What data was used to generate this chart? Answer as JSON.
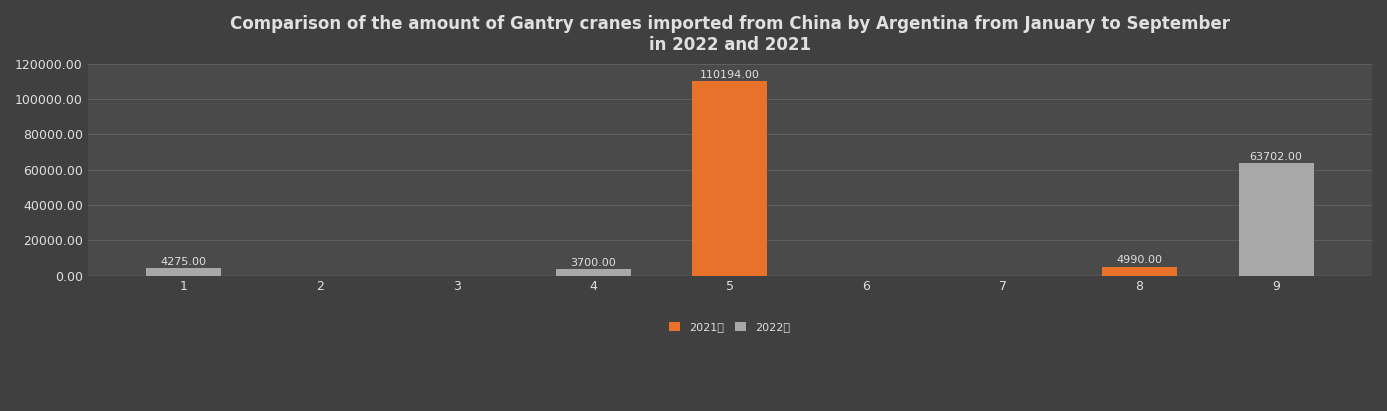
{
  "title": "Comparison of the amount of Gantry cranes imported from China by Argentina from January to September\nin 2022 and 2021",
  "categories": [
    1,
    2,
    3,
    4,
    5,
    6,
    7,
    8,
    9
  ],
  "series_2021": [
    0,
    0,
    0,
    0,
    110194.0,
    0,
    0,
    4990.0,
    0
  ],
  "series_2022": [
    4275.0,
    0,
    0,
    3700.0,
    0,
    0,
    0,
    0,
    63702.0
  ],
  "color_2021": "#E8722A",
  "color_2022": "#A8A8A8",
  "background_color": "#404040",
  "plot_bg_color": "#4a4a4a",
  "text_color": "#e0e0e0",
  "grid_color": "#606060",
  "ylim": [
    0,
    120000
  ],
  "yticks": [
    0,
    20000,
    40000,
    60000,
    80000,
    100000,
    120000
  ],
  "bar_width": 0.55,
  "legend_2021": "2021年",
  "legend_2022": "2022年",
  "title_fontsize": 12,
  "tick_fontsize": 9,
  "label_fontsize": 8
}
